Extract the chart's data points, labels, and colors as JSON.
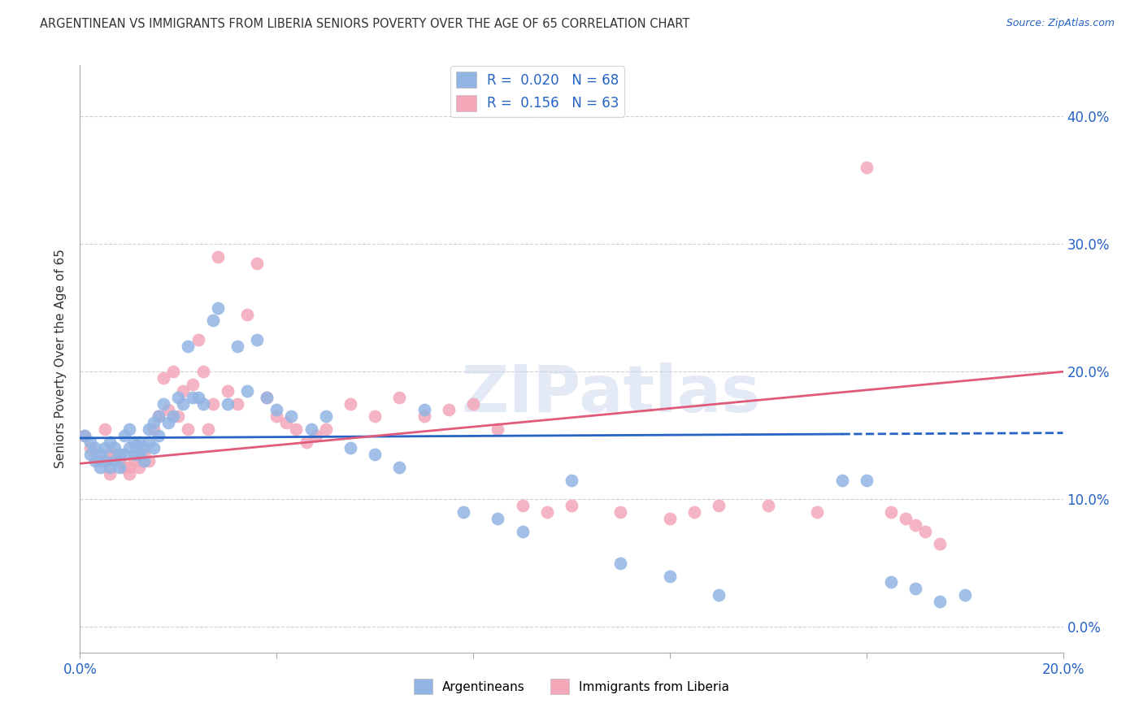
{
  "title": "ARGENTINEAN VS IMMIGRANTS FROM LIBERIA SENIORS POVERTY OVER THE AGE OF 65 CORRELATION CHART",
  "source": "Source: ZipAtlas.com",
  "ylabel": "Seniors Poverty Over the Age of 65",
  "xlim": [
    0.0,
    0.2
  ],
  "ylim": [
    -0.02,
    0.44
  ],
  "ytick_labels": [
    "0.0%",
    "10.0%",
    "20.0%",
    "30.0%",
    "40.0%"
  ],
  "ytick_values": [
    0.0,
    0.1,
    0.2,
    0.3,
    0.4
  ],
  "xtick_values": [
    0.0,
    0.04,
    0.08,
    0.12,
    0.16,
    0.2
  ],
  "xtick_labels": [
    "0.0%",
    "",
    "",
    "",
    "",
    "20.0%"
  ],
  "blue_R": 0.02,
  "blue_N": 68,
  "pink_R": 0.156,
  "pink_N": 63,
  "blue_color": "#92b4e3",
  "pink_color": "#f4a7b9",
  "blue_line_color": "#2563c4",
  "pink_line_color": "#e05a7a",
  "blue_line_solid_end": 0.155,
  "blue_line_start_y": 0.148,
  "blue_line_end_y": 0.152,
  "pink_line_start_y": 0.128,
  "pink_line_end_y": 0.2,
  "background_color": "#ffffff",
  "grid_color": "#d0d0d0",
  "watermark": "ZIPatlas",
  "blue_scatter_x": [
    0.001,
    0.002,
    0.002,
    0.003,
    0.003,
    0.004,
    0.004,
    0.005,
    0.005,
    0.006,
    0.006,
    0.007,
    0.007,
    0.008,
    0.008,
    0.009,
    0.009,
    0.01,
    0.01,
    0.011,
    0.011,
    0.012,
    0.012,
    0.013,
    0.013,
    0.014,
    0.014,
    0.015,
    0.015,
    0.016,
    0.016,
    0.017,
    0.018,
    0.019,
    0.02,
    0.021,
    0.022,
    0.023,
    0.024,
    0.025,
    0.027,
    0.028,
    0.03,
    0.032,
    0.034,
    0.036,
    0.038,
    0.04,
    0.043,
    0.047,
    0.05,
    0.055,
    0.06,
    0.065,
    0.07,
    0.078,
    0.085,
    0.09,
    0.1,
    0.11,
    0.12,
    0.13,
    0.155,
    0.16,
    0.165,
    0.17,
    0.175,
    0.18
  ],
  "blue_scatter_y": [
    0.15,
    0.145,
    0.135,
    0.14,
    0.13,
    0.135,
    0.125,
    0.14,
    0.13,
    0.145,
    0.125,
    0.14,
    0.13,
    0.135,
    0.125,
    0.135,
    0.15,
    0.155,
    0.14,
    0.145,
    0.135,
    0.145,
    0.135,
    0.14,
    0.13,
    0.155,
    0.145,
    0.16,
    0.14,
    0.165,
    0.15,
    0.175,
    0.16,
    0.165,
    0.18,
    0.175,
    0.22,
    0.18,
    0.18,
    0.175,
    0.24,
    0.25,
    0.175,
    0.22,
    0.185,
    0.225,
    0.18,
    0.17,
    0.165,
    0.155,
    0.165,
    0.14,
    0.135,
    0.125,
    0.17,
    0.09,
    0.085,
    0.075,
    0.115,
    0.05,
    0.04,
    0.025,
    0.115,
    0.115,
    0.035,
    0.03,
    0.02,
    0.025
  ],
  "pink_scatter_x": [
    0.001,
    0.002,
    0.003,
    0.004,
    0.005,
    0.006,
    0.006,
    0.007,
    0.008,
    0.009,
    0.01,
    0.01,
    0.011,
    0.012,
    0.013,
    0.014,
    0.015,
    0.016,
    0.017,
    0.018,
    0.019,
    0.02,
    0.021,
    0.022,
    0.023,
    0.024,
    0.025,
    0.026,
    0.027,
    0.028,
    0.03,
    0.032,
    0.034,
    0.036,
    0.038,
    0.04,
    0.042,
    0.044,
    0.046,
    0.048,
    0.05,
    0.055,
    0.06,
    0.065,
    0.07,
    0.075,
    0.08,
    0.085,
    0.09,
    0.095,
    0.1,
    0.11,
    0.12,
    0.125,
    0.13,
    0.14,
    0.15,
    0.16,
    0.165,
    0.168,
    0.17,
    0.172,
    0.175
  ],
  "pink_scatter_y": [
    0.15,
    0.14,
    0.135,
    0.13,
    0.155,
    0.135,
    0.12,
    0.135,
    0.13,
    0.125,
    0.125,
    0.12,
    0.13,
    0.125,
    0.135,
    0.13,
    0.155,
    0.165,
    0.195,
    0.17,
    0.2,
    0.165,
    0.185,
    0.155,
    0.19,
    0.225,
    0.2,
    0.155,
    0.175,
    0.29,
    0.185,
    0.175,
    0.245,
    0.285,
    0.18,
    0.165,
    0.16,
    0.155,
    0.145,
    0.15,
    0.155,
    0.175,
    0.165,
    0.18,
    0.165,
    0.17,
    0.175,
    0.155,
    0.095,
    0.09,
    0.095,
    0.09,
    0.085,
    0.09,
    0.095,
    0.095,
    0.09,
    0.36,
    0.09,
    0.085,
    0.08,
    0.075,
    0.065
  ]
}
